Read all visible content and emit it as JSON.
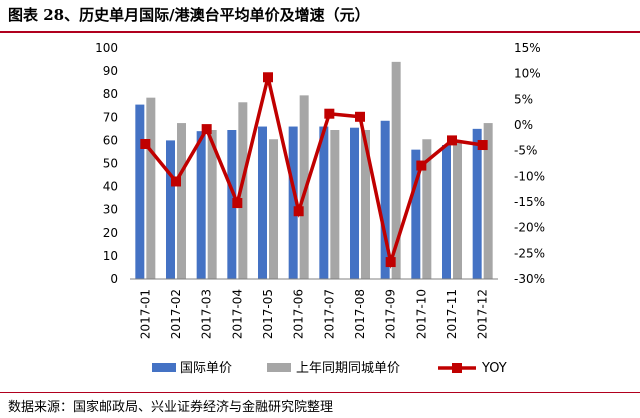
{
  "title": "图表 28、历史单月国际/港澳台平均单价及增速（元）",
  "source": "数据来源：国家邮政局、兴业证券经济与金融研究院整理",
  "colors": {
    "bar1": "#4472c4",
    "bar2": "#a6a6a6",
    "line": "#c00000",
    "rule": "#b0001e"
  },
  "chart_data": {
    "type": "bar+line",
    "categories": [
      "2017-01",
      "2017-02",
      "2017-03",
      "2017-04",
      "2017-05",
      "2017-06",
      "2017-07",
      "2017-08",
      "2017-09",
      "2017-10",
      "2017-11",
      "2017-12"
    ],
    "series": [
      {
        "name": "国际单价",
        "type": "bar",
        "axis": "left",
        "values": [
          75.5,
          60,
          64,
          64.5,
          66,
          66,
          66,
          65.5,
          68.5,
          56,
          58,
          65
        ]
      },
      {
        "name": "上年同期同城单价",
        "type": "bar",
        "axis": "left",
        "values": [
          78.5,
          67.5,
          64.5,
          76.5,
          60.5,
          79.5,
          64.5,
          64.5,
          94,
          60.5,
          60,
          67.5
        ]
      },
      {
        "name": "YOY",
        "type": "line",
        "axis": "right",
        "values": [
          -3.7,
          -11.0,
          -0.8,
          -15.2,
          9.3,
          -16.8,
          2.2,
          1.6,
          -26.7,
          -7.9,
          -3.0,
          -3.9
        ]
      }
    ],
    "y_left": {
      "min": 0,
      "max": 100,
      "ticks": [
        "0",
        "10",
        "20",
        "30",
        "40",
        "50",
        "60",
        "70",
        "80",
        "90",
        "100"
      ]
    },
    "y_right": {
      "min": -30,
      "max": 15,
      "ticks": [
        "-30%",
        "-25%",
        "-20%",
        "-15%",
        "-10%",
        "-5%",
        "0%",
        "5%",
        "10%",
        "15%"
      ]
    },
    "legend_position": "bottom",
    "grid": false
  }
}
